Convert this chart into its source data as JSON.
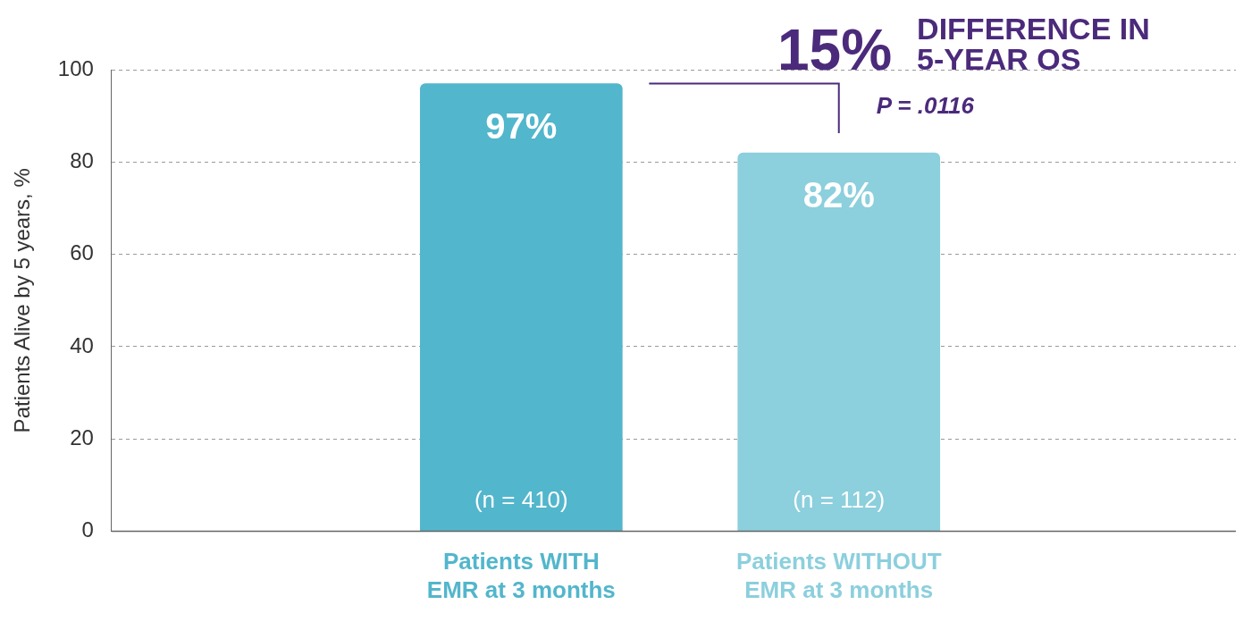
{
  "chart_data": {
    "type": "bar",
    "ylabel": "Patients Alive by 5 years, %",
    "categories": [
      "Patients WITH EMR at 3 months",
      "Patients WITHOUT EMR at 3 months"
    ],
    "values": [
      97,
      82
    ],
    "colors": [
      "#52b6cc",
      "#8ccfdd"
    ],
    "value_labels": [
      "97%",
      "82%"
    ],
    "annotations": [
      "15% DIFFERENCE IN 5-YEAR OS",
      "P = .0116",
      "(n = 410)",
      "(n = 112)"
    ],
    "ylim": [
      0,
      100
    ],
    "yticks": [
      0,
      20,
      40,
      60,
      80,
      100
    ],
    "grid": "y",
    "legend": false
  }
}
